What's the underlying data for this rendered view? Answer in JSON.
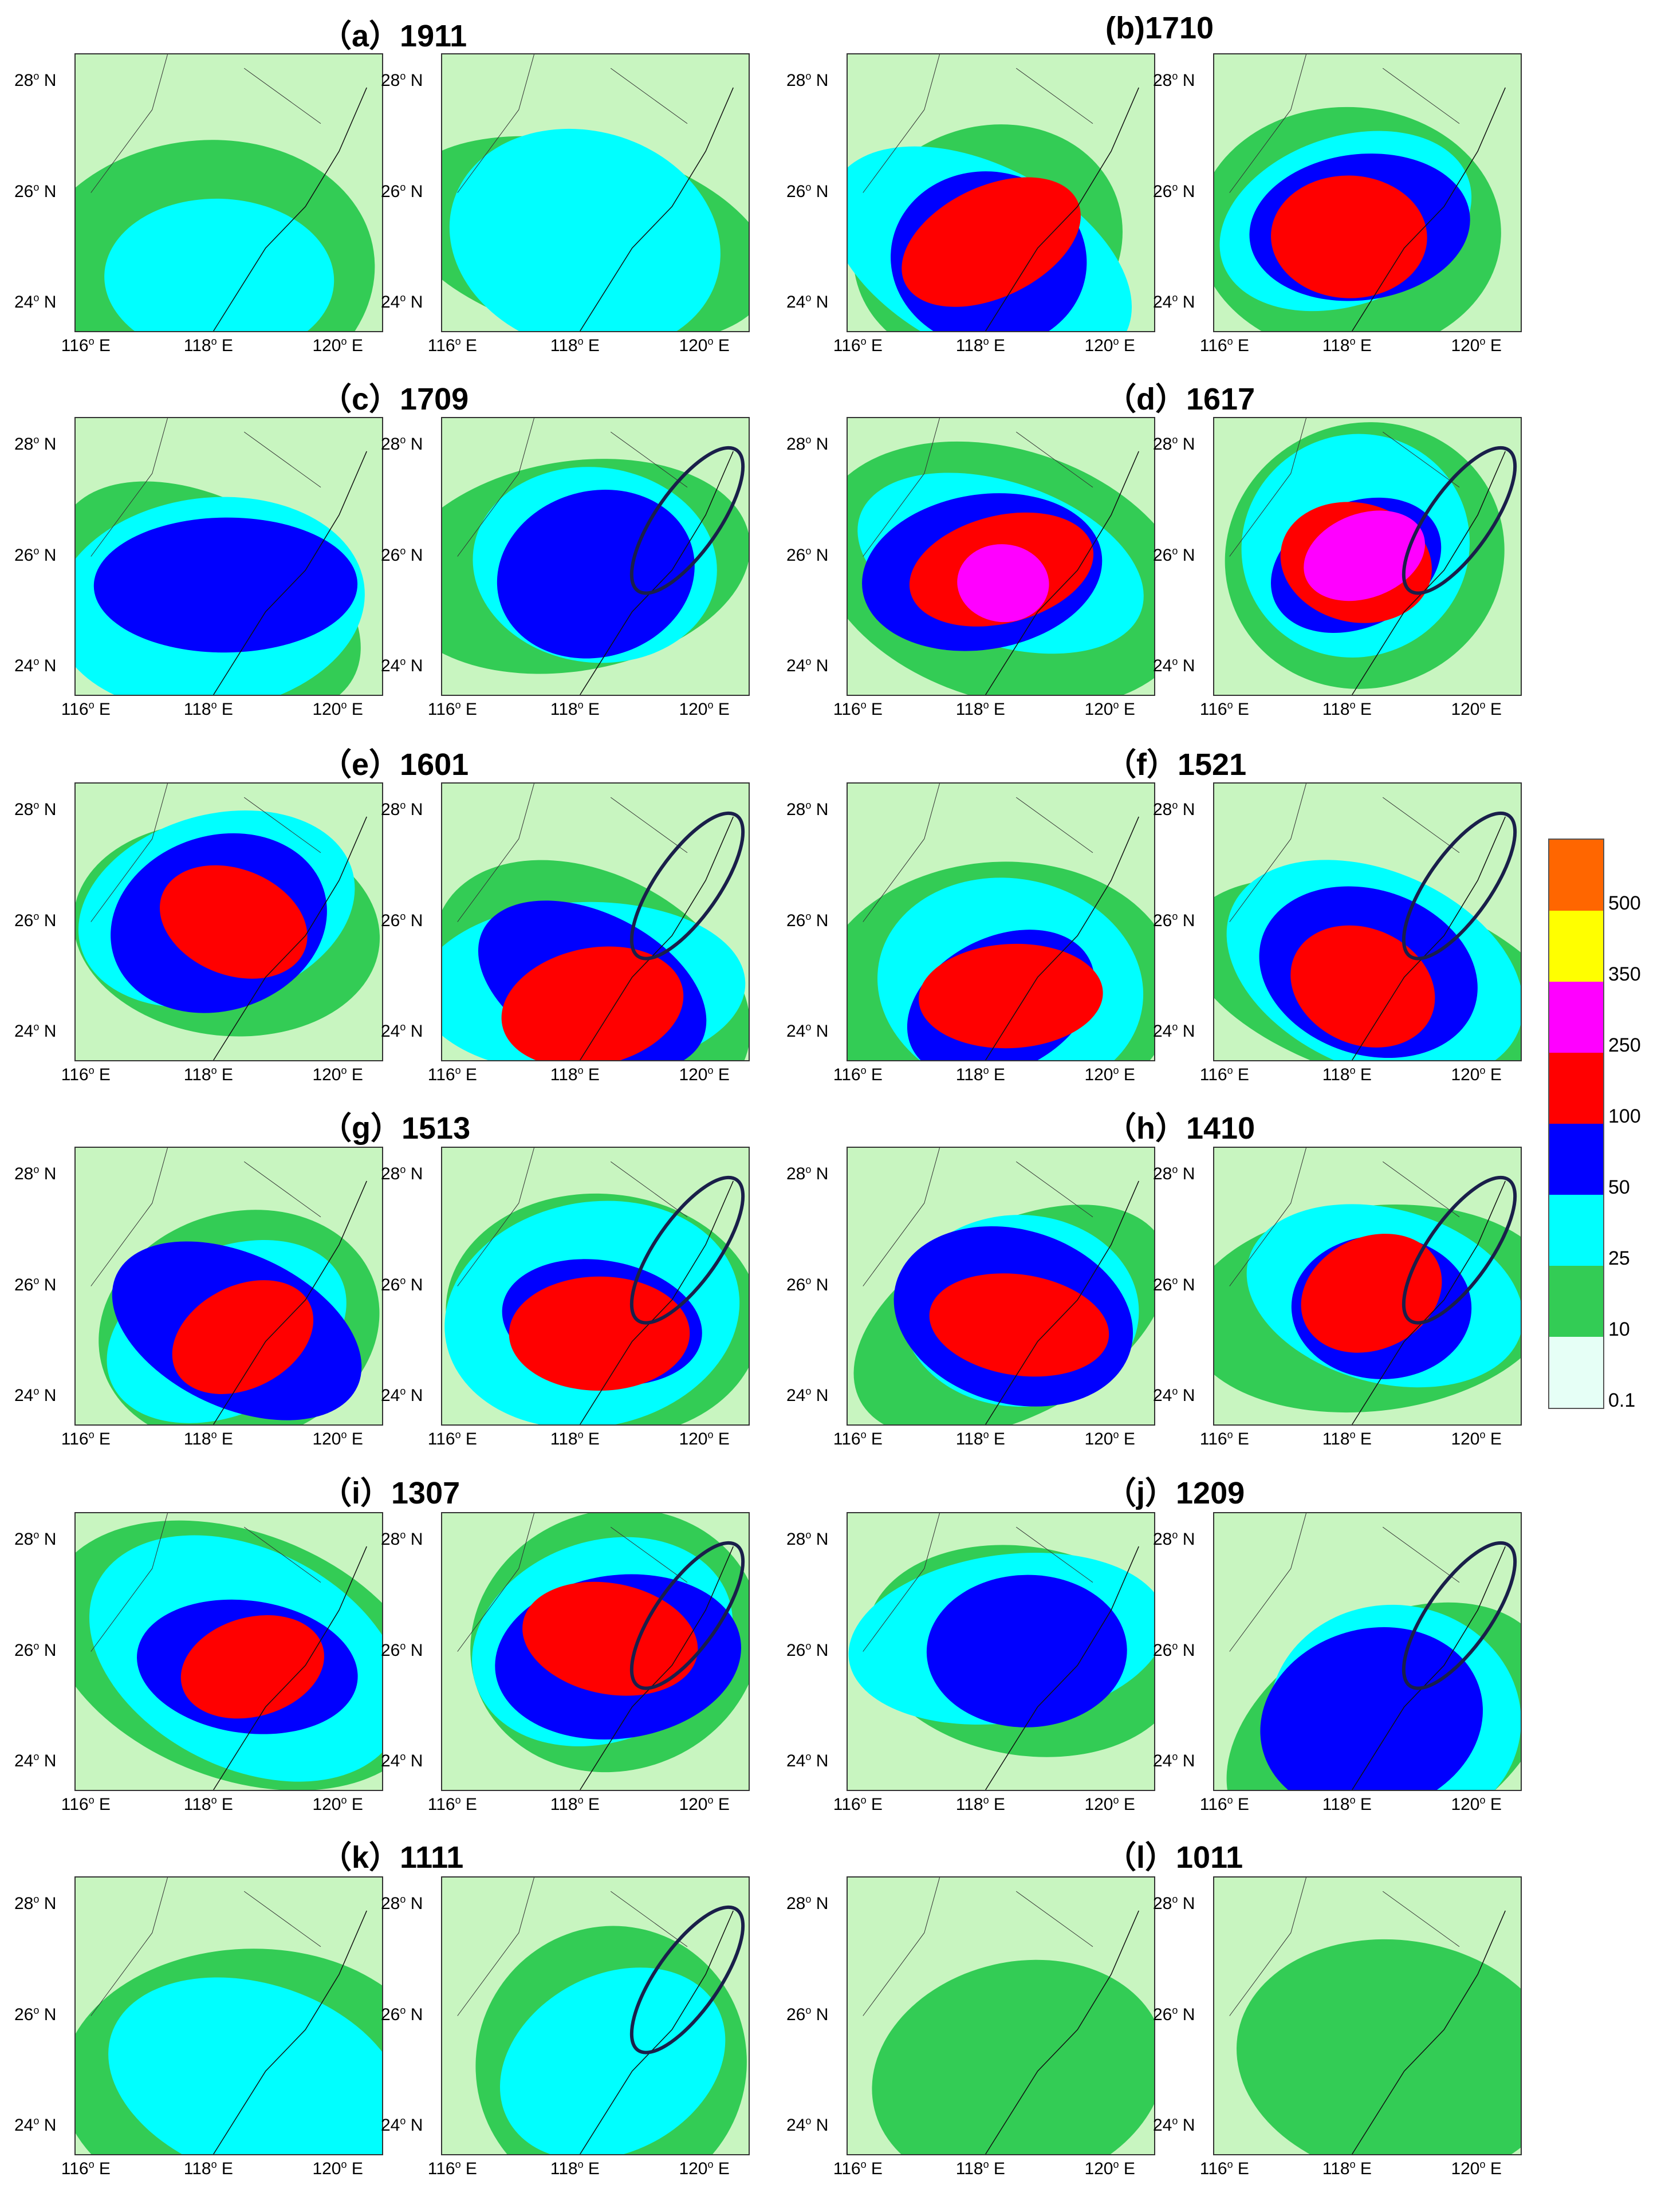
{
  "chart_data": {
    "type": "heatmap",
    "description_kind": "precipitation maps, paired panels",
    "panels": [
      {
        "label": "（a）1911"
      },
      {
        "label": "(b)1710"
      },
      {
        "label": "（c）1709"
      },
      {
        "label": "（d）1617"
      },
      {
        "label": "（e）1601"
      },
      {
        "label": "（f）1521"
      },
      {
        "label": "（g）1513"
      },
      {
        "label": "（h）1410"
      },
      {
        "label": "（i）1307"
      },
      {
        "label": "（j）1209"
      },
      {
        "label": "（k）1111"
      },
      {
        "label": "（l）1011"
      }
    ],
    "x_ticks": [
      "116",
      "118",
      "120"
    ],
    "x_tick_suffix": "E",
    "y_ticks": [
      "28",
      "26",
      "24"
    ],
    "y_tick_suffix": "N",
    "degree_sign": "o",
    "ellipse_in_right_map": [
      false,
      false,
      true,
      true,
      true,
      true,
      true,
      true,
      true,
      true,
      true,
      false
    ],
    "intensity": [
      2,
      4,
      3,
      5,
      4,
      4,
      4,
      4,
      4,
      3,
      2,
      1
    ],
    "legend": {
      "levels": [
        "0.1",
        "10",
        "25",
        "50",
        "100",
        "250",
        "350",
        "500"
      ],
      "colors": [
        "#e6fff6",
        "#33cc55",
        "#00ffff",
        "#0000ff",
        "#ff0000",
        "#ff00ff",
        "#ffff00",
        "#ff6600"
      ]
    }
  },
  "colors": {
    "background": "#ffffff",
    "land_light": "#c8f5c0",
    "ellipse": "#1a1f4a",
    "border": "#333333"
  }
}
